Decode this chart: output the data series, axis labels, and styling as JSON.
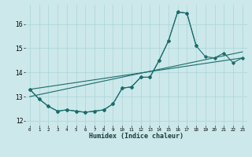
{
  "xlabel": "Humidex (Indice chaleur)",
  "ylabel": "",
  "bg_color": "#cce8ea",
  "grid_color": "#aad4d8",
  "line_color": "#1a6b6b",
  "xlim": [
    -0.5,
    23.5
  ],
  "ylim": [
    11.8,
    16.8
  ],
  "yticks": [
    12,
    13,
    14,
    15,
    16
  ],
  "xtick_labels": [
    "0",
    "1",
    "2",
    "3",
    "4",
    "5",
    "6",
    "7",
    "8",
    "9",
    "10",
    "11",
    "12",
    "13",
    "14",
    "15",
    "16",
    "17",
    "18",
    "19",
    "20",
    "21",
    "22",
    "23"
  ],
  "series1_x": [
    0,
    1,
    2,
    3,
    4,
    5,
    6,
    7,
    8,
    9,
    10,
    11,
    12,
    13,
    14,
    15,
    16,
    17,
    18
  ],
  "series1_y": [
    13.3,
    12.9,
    12.6,
    12.4,
    12.45,
    12.4,
    12.35,
    12.4,
    12.45,
    12.7,
    13.35,
    13.4,
    13.8,
    13.8,
    14.5,
    15.3,
    16.5,
    16.45,
    15.1
  ],
  "series2_x": [
    0,
    1,
    2,
    3,
    4,
    5,
    6,
    7,
    8,
    9,
    10,
    11,
    12,
    13,
    14,
    15,
    16,
    17,
    18,
    19,
    20,
    21,
    22,
    23
  ],
  "series2_y": [
    13.3,
    12.9,
    12.6,
    12.4,
    12.45,
    12.4,
    12.35,
    12.4,
    12.45,
    12.7,
    13.35,
    13.4,
    13.8,
    13.8,
    14.5,
    15.3,
    16.5,
    16.45,
    15.1,
    14.65,
    14.6,
    14.8,
    14.4,
    14.6
  ],
  "series3_x": [
    0,
    23
  ],
  "series3_y": [
    13.3,
    14.6
  ],
  "series4_x": [
    0,
    23
  ],
  "series4_y": [
    13.0,
    14.85
  ]
}
